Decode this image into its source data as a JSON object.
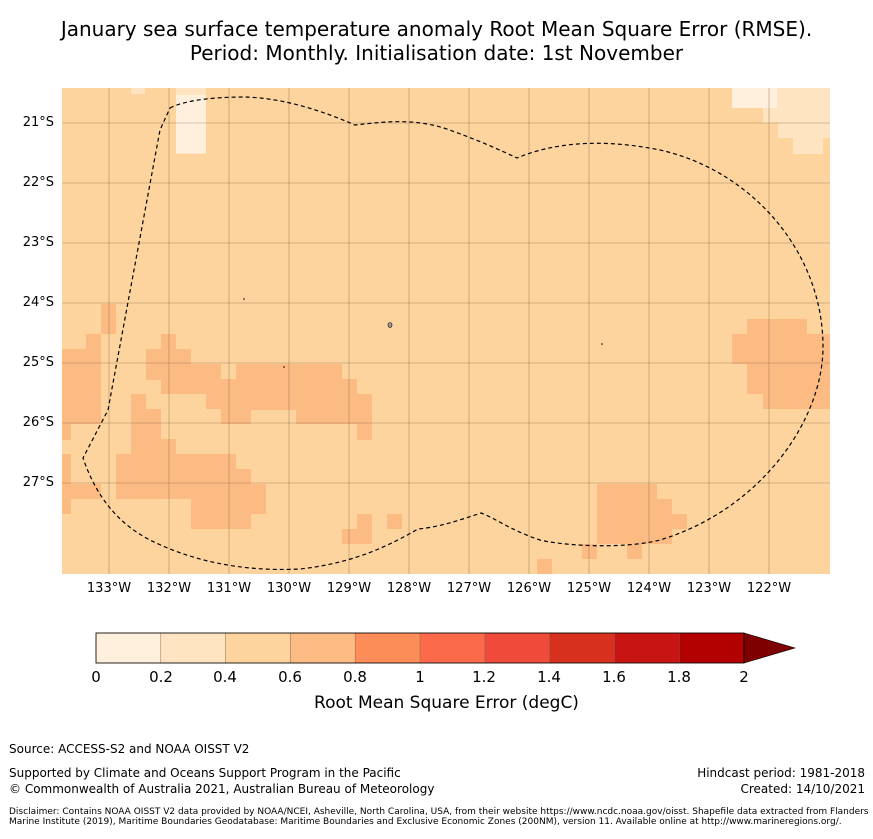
{
  "title": {
    "line1": "January sea surface temperature anomaly Root Mean Square Error (RMSE).",
    "line2": "Period: Monthly. Initialisation date: 1st November"
  },
  "map": {
    "latitudes": [
      "21°S",
      "22°S",
      "23°S",
      "24°S",
      "25°S",
      "26°S",
      "27°S"
    ],
    "longitudes": [
      "133°W",
      "132°W",
      "131°W",
      "130°W",
      "129°W",
      "128°W",
      "127°W",
      "126°W",
      "125°W",
      "124°W",
      "123°W",
      "122°W"
    ],
    "background_color": "#fdd49e",
    "boundary": "Maritime Boundaries and Exclusive Economic Zones (200NM)"
  },
  "colorbar": {
    "ticks": [
      "0",
      "0.2",
      "0.4",
      "0.6",
      "0.8",
      "1",
      "1.2",
      "1.4",
      "1.6",
      "1.8",
      "2"
    ],
    "colors": [
      "#fff0dd",
      "#fee4c1",
      "#fdd49e",
      "#fdbb84",
      "#fc8d59",
      "#fb6a4a",
      "#ef4a3a",
      "#d7301f",
      "#c81412",
      "#b30000"
    ],
    "extend_color": "#7f0000",
    "label": "Root Mean Square Error (degC)"
  },
  "footer": {
    "source": "Source: ACCESS-S2 and NOAA OISST V2",
    "support": "Supported by Climate and Oceans Support Program in the Pacific",
    "copyright": "© Commonwealth of Australia 2021, Australian Bureau of Meteorology",
    "hindcast": "Hindcast period: 1981-2018",
    "created": "Created: 14/10/2021",
    "disclaimer": "Disclaimer: Contains NOAA OISST V2 data provided by NOAA/NCEI, Asheville, North Carolina, USA, from their website https://www.ncdc.noaa.gov/oisst. Shapefile data extracted from Flanders Marine Institute (2019), Maritime Boundaries Geodatabase: Maritime Boundaries and Exclusive Economic Zones (200NM), version 11. Available online at http://www.marineregions.org/."
  }
}
